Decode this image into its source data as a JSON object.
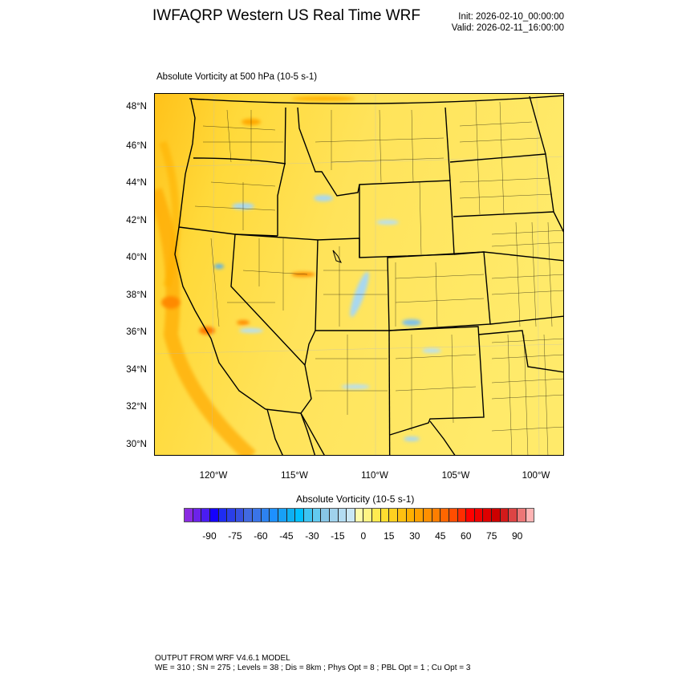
{
  "header": {
    "title": "IWFAQRP Western US Real Time WRF",
    "init": "Init: 2026-02-10_00:00:00",
    "valid": "Valid: 2026-02-11_16:00:00"
  },
  "plot": {
    "subtitle": "Absolute Vorticity at 500 hPa   (10-5 s-1)",
    "lat_labels": [
      "48°N",
      "46°N",
      "44°N",
      "42°N",
      "40°N",
      "38°N",
      "36°N",
      "34°N",
      "32°N",
      "30°N"
    ],
    "lon_labels": [
      "120°W",
      "115°W",
      "110°W",
      "105°W",
      "100°W"
    ]
  },
  "colorbar": {
    "title": "Absolute Vorticity  (10-5 s-1)",
    "labels": [
      "-90",
      "-75",
      "-60",
      "-45",
      "-30",
      "-15",
      "0",
      "15",
      "30",
      "45",
      "60",
      "75",
      "90"
    ],
    "colors": [
      "#8a2be2",
      "#6c22ea",
      "#4a1cf2",
      "#1400ff",
      "#1e2cf2",
      "#2a3ee8",
      "#3650e0",
      "#4169e1",
      "#3a74e8",
      "#2d82f0",
      "#1e90ff",
      "#18a0f6",
      "#0fb0f2",
      "#00bfff",
      "#3ec4f2",
      "#62caf0",
      "#87c6e6",
      "#a0d2ec",
      "#b3dcf2",
      "#cae7f5",
      "#fffbaa",
      "#fff484",
      "#ffea50",
      "#ffde30",
      "#ffd020",
      "#ffc010",
      "#ffb000",
      "#ffa000",
      "#ff8f00",
      "#ff7e00",
      "#ff6600",
      "#ff4d00",
      "#ff2d00",
      "#ff0000",
      "#ee0000",
      "#dd0000",
      "#cc0000",
      "#d21a1a",
      "#dc4444",
      "#ec7676",
      "#ffb4b4"
    ]
  },
  "footer": {
    "line1": "OUTPUT FROM WRF V4.6.1 MODEL",
    "line2": "WE = 310 ; SN = 275 ; Levels = 38 ; Dis = 8km ; Phys Opt = 8 ; PBL Opt = 1 ; Cu Opt = 3"
  }
}
